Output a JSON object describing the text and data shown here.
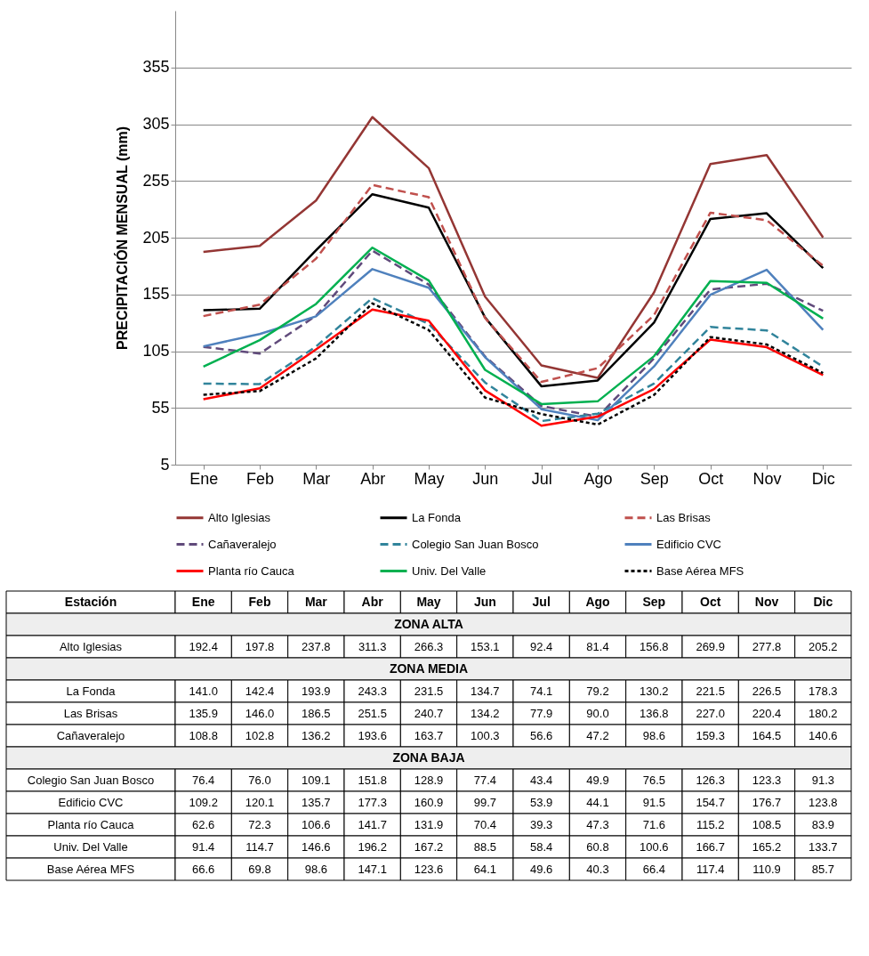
{
  "chart_data": {
    "type": "line",
    "ylabel": "PRECIPITACIÓN MENSUAL (mm)",
    "categories": [
      "Ene",
      "Feb",
      "Mar",
      "Abr",
      "May",
      "Jun",
      "Jul",
      "Ago",
      "Sep",
      "Oct",
      "Nov",
      "Dic"
    ],
    "series": [
      {
        "name": "Alto Iglesias",
        "color": "#943634",
        "line_style": "solid",
        "values": [
          192.4,
          197.8,
          237.8,
          311.3,
          266.3,
          153.1,
          92.4,
          81.4,
          156.8,
          269.9,
          277.8,
          205.2
        ],
        "value_labels": [
          "192.4",
          "197.8",
          "237.8",
          "311.3",
          "266.3",
          "153.1",
          "92.4",
          "81.4",
          "156.8",
          "269.9",
          "277.8",
          "205.2"
        ]
      },
      {
        "name": "La Fonda",
        "color": "#000000",
        "line_style": "solid",
        "values": [
          141.0,
          142.4,
          193.9,
          243.3,
          231.5,
          134.7,
          74.1,
          79.2,
          130.2,
          221.5,
          226.5,
          178.3
        ],
        "value_labels": [
          "141.0",
          "142.4",
          "193.9",
          "243.3",
          "231.5",
          "134.7",
          "74.1",
          "79.2",
          "130.2",
          "221.5",
          "226.5",
          "178.3"
        ]
      },
      {
        "name": "Las Brisas",
        "color": "#c0504d",
        "line_style": "dashed",
        "values": [
          135.9,
          146.0,
          186.5,
          251.5,
          240.7,
          134.2,
          77.9,
          90.0,
          136.8,
          227.0,
          220.4,
          180.2
        ],
        "value_labels": [
          "135.9",
          "146.0",
          "186.5",
          "251.5",
          "240.7",
          "134.2",
          "77.9",
          "90.0",
          "136.8",
          "227.0",
          "220.4",
          "180.2"
        ]
      },
      {
        "name": "Cañaveralejo",
        "color": "#604a7b",
        "line_style": "dashed",
        "values": [
          108.8,
          102.8,
          136.2,
          193.6,
          163.7,
          100.3,
          56.6,
          47.2,
          98.6,
          159.3,
          164.5,
          140.6
        ],
        "value_labels": [
          "108.8",
          "102.8",
          "136.2",
          "193.6",
          "163.7",
          "100.3",
          "56.6",
          "47.2",
          "98.6",
          "159.3",
          "164.5",
          "140.6"
        ]
      },
      {
        "name": "Colegio San Juan Bosco",
        "color": "#31849b",
        "line_style": "dashed",
        "values": [
          76.4,
          76.0,
          109.1,
          151.8,
          128.9,
          77.4,
          43.4,
          49.9,
          76.5,
          126.3,
          123.3,
          91.3
        ],
        "value_labels": [
          "76.4",
          "76.0",
          "109.1",
          "151.8",
          "128.9",
          "77.4",
          "43.4",
          "49.9",
          "76.5",
          "126.3",
          "123.3",
          "91.3"
        ]
      },
      {
        "name": "Edificio CVC",
        "color": "#4f81bd",
        "line_style": "solid",
        "values": [
          109.2,
          120.1,
          135.7,
          177.3,
          160.9,
          99.7,
          53.9,
          44.1,
          91.5,
          154.7,
          176.7,
          123.8
        ],
        "value_labels": [
          "109.2",
          "120.1",
          "135.7",
          "177.3",
          "160.9",
          "99.7",
          "53.9",
          "44.1",
          "91.5",
          "154.7",
          "176.7",
          "123.8"
        ]
      },
      {
        "name": "Planta río Cauca",
        "color": "#ff0000",
        "line_style": "solid",
        "values": [
          62.6,
          72.3,
          106.6,
          141.7,
          131.9,
          70.4,
          39.3,
          47.3,
          71.6,
          115.2,
          108.5,
          83.9
        ],
        "value_labels": [
          "62.6",
          "72.3",
          "106.6",
          "141.7",
          "131.9",
          "70.4",
          "39.3",
          "47.3",
          "71.6",
          "115.2",
          "108.5",
          "83.9"
        ]
      },
      {
        "name": "Univ. Del Valle",
        "color": "#00b050",
        "line_style": "solid",
        "values": [
          91.4,
          114.7,
          146.6,
          196.2,
          167.2,
          88.5,
          58.4,
          60.8,
          100.6,
          166.7,
          165.2,
          133.7
        ],
        "value_labels": [
          "91.4",
          "114.7",
          "146.6",
          "196.2",
          "167.2",
          "88.5",
          "58.4",
          "60.8",
          "100.6",
          "166.7",
          "165.2",
          "133.7"
        ]
      },
      {
        "name": "Base Aérea MFS",
        "color": "#000000",
        "line_style": "dotted",
        "values": [
          66.6,
          69.8,
          98.6,
          147.1,
          123.6,
          64.1,
          49.6,
          40.3,
          66.4,
          117.4,
          110.9,
          85.7
        ],
        "value_labels": [
          "66.6",
          "69.8",
          "98.6",
          "147.1",
          "123.6",
          "64.1",
          "49.6",
          "40.3",
          "66.4",
          "117.4",
          "110.9",
          "85.7"
        ]
      }
    ],
    "ylim": [
      5,
      405
    ],
    "yticks": [
      5,
      55,
      105,
      155,
      205,
      255,
      305,
      355
    ],
    "grid": "y",
    "legend": "bottom",
    "annotations": [
      "Estación",
      "ZONA ALTA",
      "ZONA MEDIA",
      "ZONA BAJA"
    ]
  }
}
